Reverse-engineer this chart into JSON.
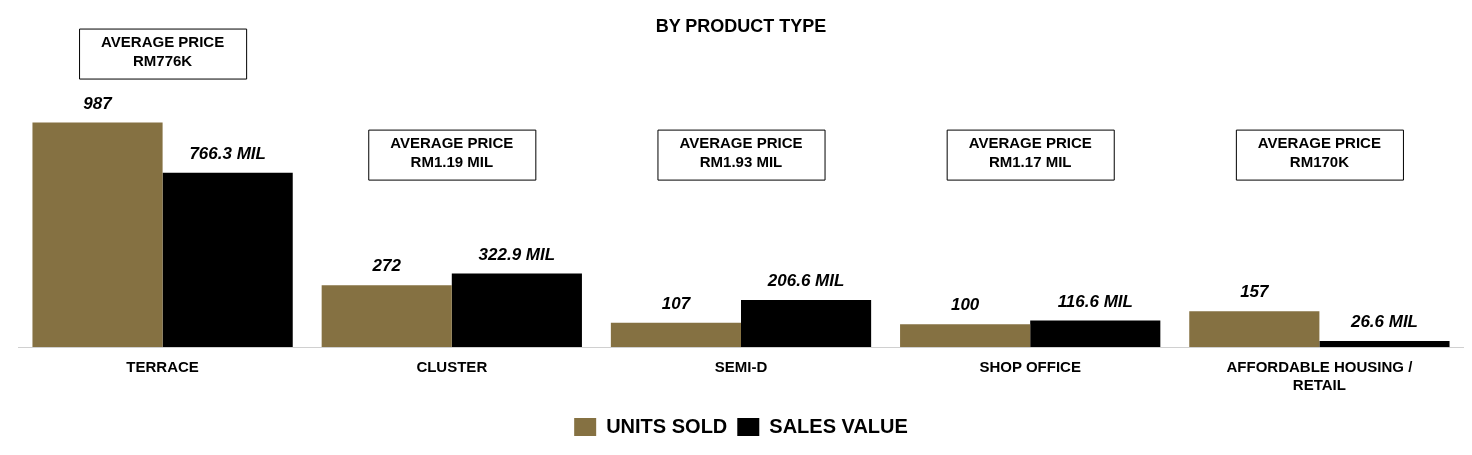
{
  "chart_data": {
    "type": "bar",
    "title": "BY PRODUCT TYPE",
    "categories": [
      "TERRACE",
      "CLUSTER",
      "SEMI-D",
      "SHOP OFFICE",
      "AFFORDABLE HOUSING / RETAIL"
    ],
    "series": [
      {
        "name": "UNITS SOLD",
        "color": "#857142",
        "values": [
          987,
          272,
          107,
          100,
          157
        ],
        "value_labels": [
          "987",
          "272",
          "107",
          "100",
          "157"
        ]
      },
      {
        "name": "SALES VALUE",
        "color": "#000000",
        "values": [
          766.3,
          322.9,
          206.6,
          116.6,
          26.6
        ],
        "value_labels": [
          "766.3 MIL",
          "322.9 MIL",
          "206.6 MIL",
          "116.6 MIL",
          "26.6 MIL"
        ]
      }
    ],
    "annotations": [
      "AVERAGE PRICE\nRM776K",
      "AVERAGE PRICE\nRM1.19 MIL",
      "AVERAGE PRICE\nRM1.93 MIL",
      "AVERAGE PRICE\nRM1.17 MIL",
      "AVERAGE PRICE\nRM170K"
    ],
    "legend": "bottom",
    "grid": false
  }
}
